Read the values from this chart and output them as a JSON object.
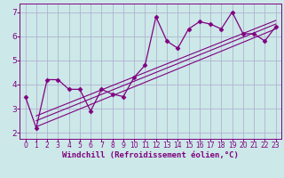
{
  "x_data": [
    0,
    1,
    2,
    3,
    4,
    5,
    6,
    7,
    8,
    9,
    10,
    11,
    12,
    13,
    14,
    15,
    16,
    17,
    18,
    19,
    20,
    21,
    22,
    23
  ],
  "y_data": [
    3.5,
    2.2,
    4.2,
    4.2,
    3.8,
    3.8,
    2.9,
    3.8,
    3.6,
    3.5,
    4.3,
    4.8,
    6.8,
    5.8,
    5.5,
    6.3,
    6.6,
    6.5,
    6.3,
    7.0,
    6.1,
    6.1,
    5.8,
    6.4
  ],
  "line_color": "#800080",
  "marker": "D",
  "markersize": 2.5,
  "linewidth": 0.9,
  "regression_lines": [
    {
      "x0": 1.0,
      "y0": 2.25,
      "x1": 23,
      "y1": 6.3
    },
    {
      "x0": 1.0,
      "y0": 2.5,
      "x1": 23,
      "y1": 6.5
    },
    {
      "x0": 1.0,
      "y0": 2.7,
      "x1": 23,
      "y1": 6.65
    }
  ],
  "xlim": [
    -0.5,
    23.5
  ],
  "ylim": [
    1.75,
    7.35
  ],
  "yticks": [
    2,
    3,
    4,
    5,
    6,
    7
  ],
  "xticks": [
    0,
    1,
    2,
    3,
    4,
    5,
    6,
    7,
    8,
    9,
    10,
    11,
    12,
    13,
    14,
    15,
    16,
    17,
    18,
    19,
    20,
    21,
    22,
    23
  ],
  "xlabel": "Windchill (Refroidissement éolien,°C)",
  "bg_color": "#cce8e8",
  "grid_color": "#aaaacc",
  "line_color_spine": "#800080",
  "text_color": "#800080",
  "tick_color": "#800080",
  "xlabel_fontsize": 6.5,
  "tick_fontsize": 5.5,
  "ytick_fontsize": 6.5
}
